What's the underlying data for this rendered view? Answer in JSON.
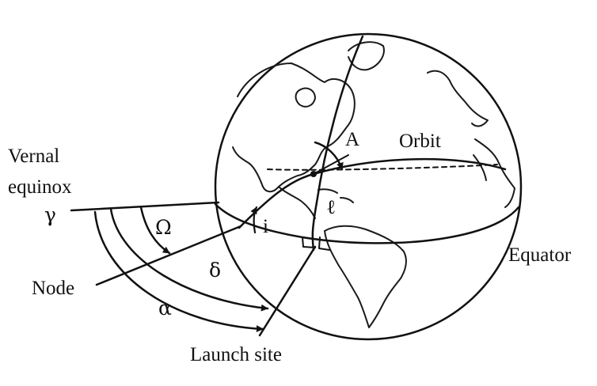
{
  "labels": {
    "vernal_line1": "Vernal",
    "vernal_line2": "equinox",
    "gamma": "γ",
    "omega": "Ω",
    "node": "Node",
    "delta": "δ",
    "alpha": "α",
    "launch_site": "Launch site",
    "orbit": "Orbit",
    "azimuth": "A",
    "latitude": "ℓ",
    "inclination": "i",
    "equator": "Equator"
  },
  "colors": {
    "ink": "#111111",
    "background": "#ffffff"
  }
}
